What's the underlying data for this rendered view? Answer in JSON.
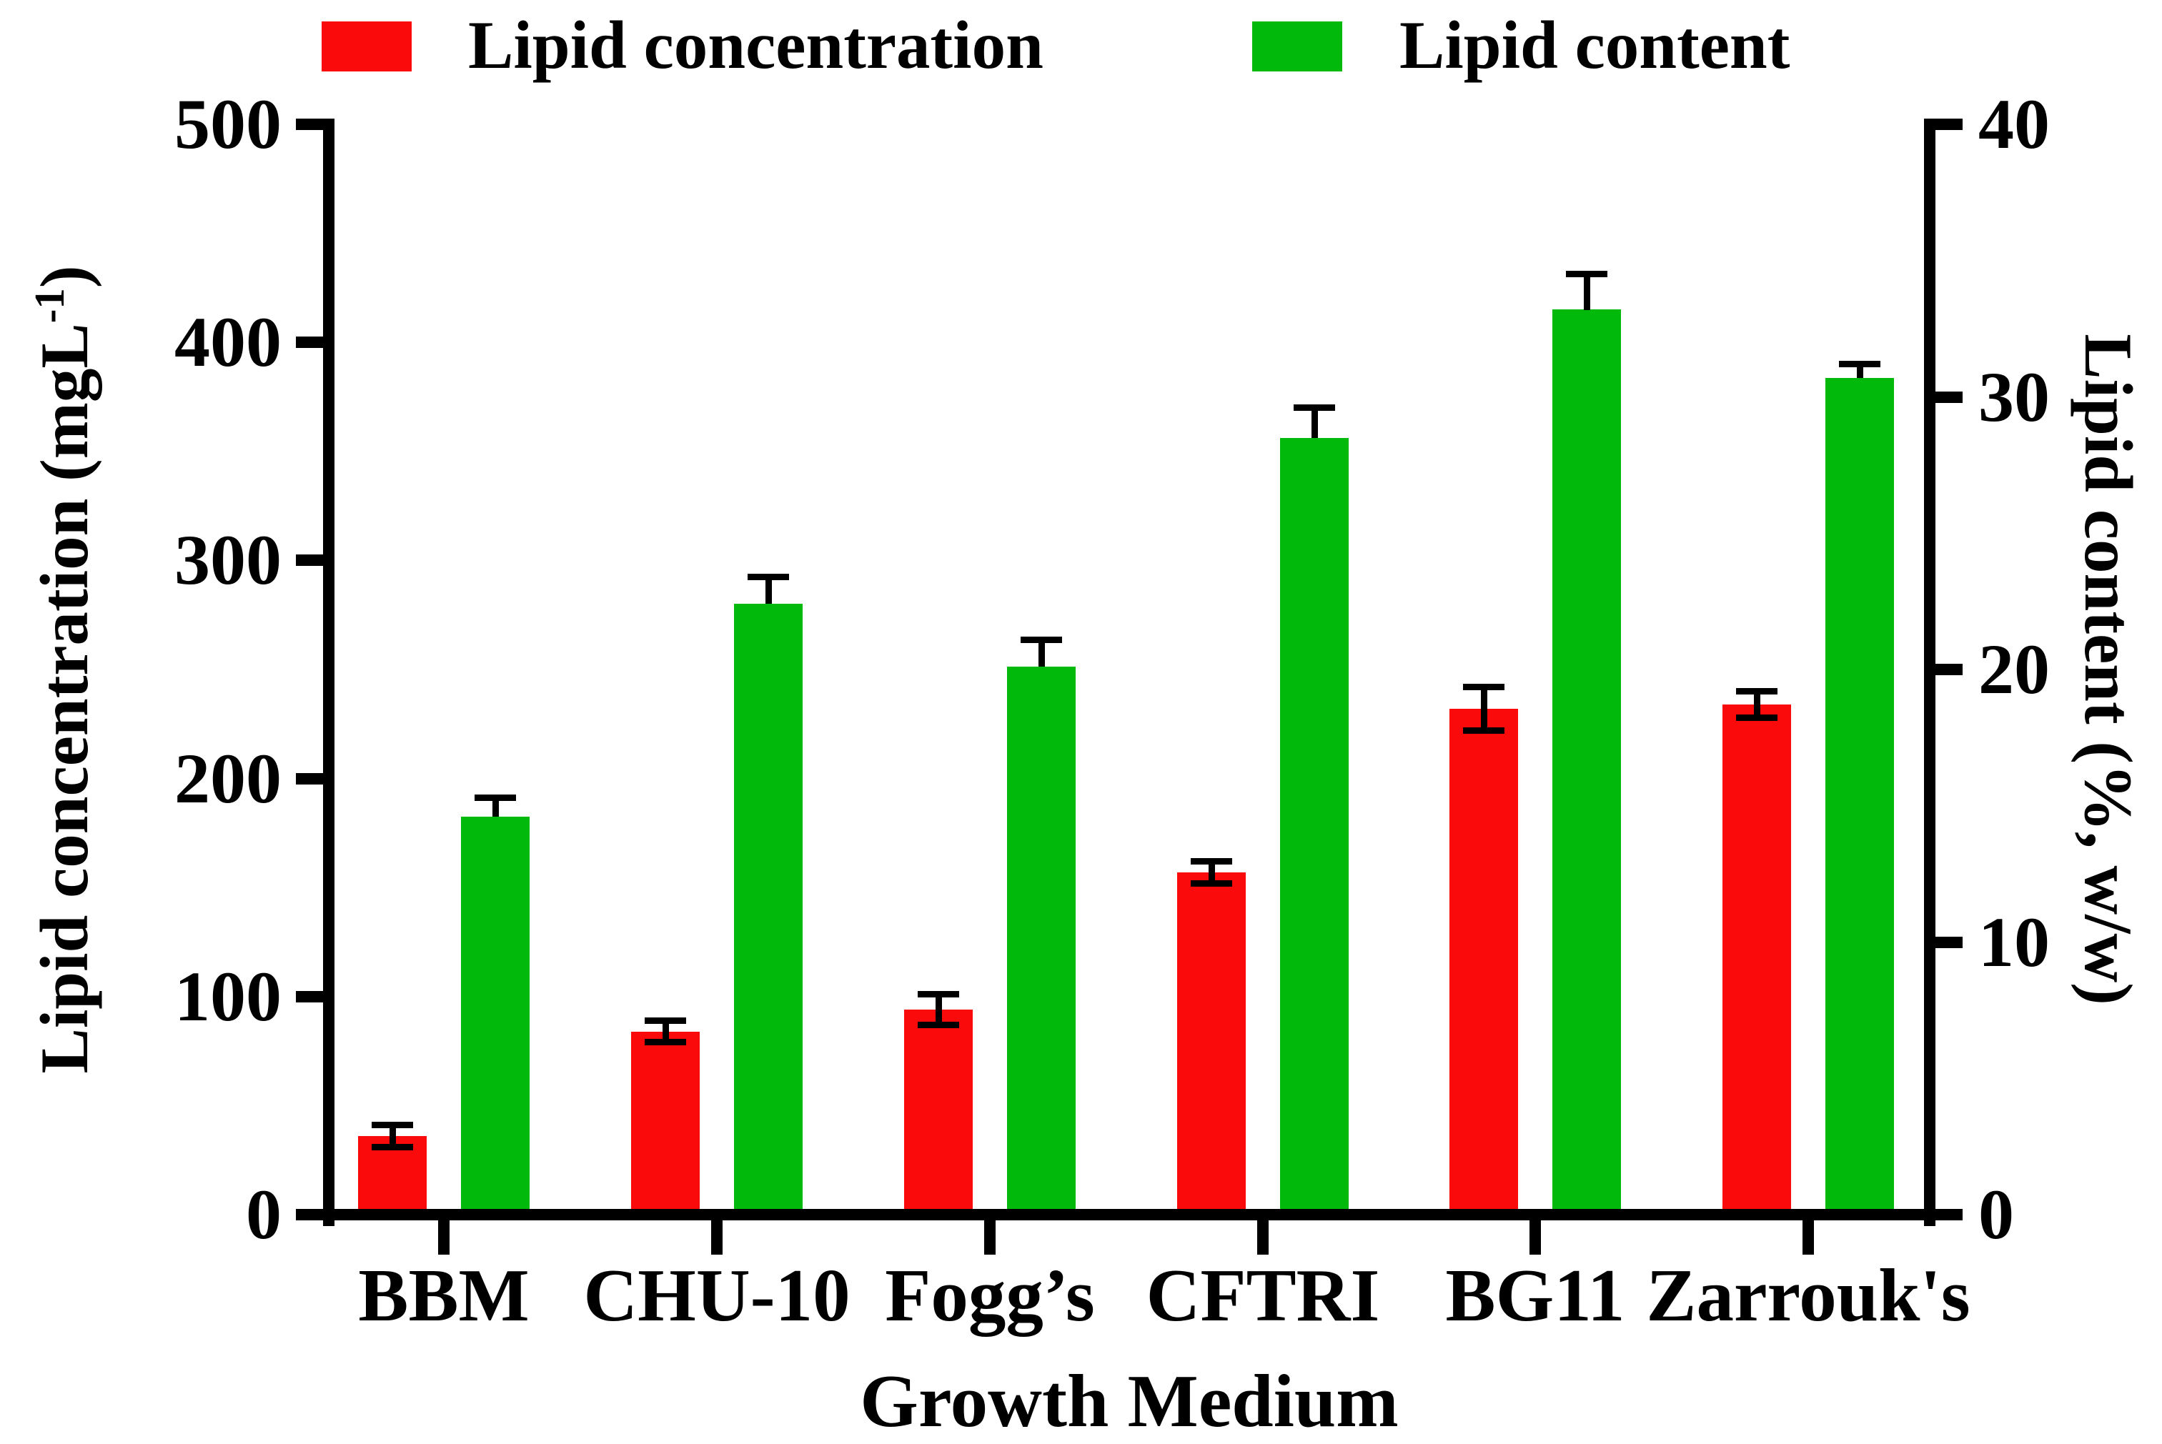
{
  "chart_data": {
    "type": "bar",
    "title": "",
    "xlabel": "Growth Medium",
    "categories": [
      "BBM",
      "CHU-10",
      "Fogg’s",
      "CFTRI",
      "BG11",
      "Zarrouk's"
    ],
    "series": [
      {
        "name": "Lipid concentration",
        "axis": "left",
        "color": "#fa0a0a",
        "values": [
          36,
          84,
          94,
          157,
          232,
          234
        ],
        "errors": [
          5,
          5,
          7,
          5,
          10,
          6
        ],
        "error_direction": "both"
      },
      {
        "name": "Lipid content",
        "axis": "right",
        "color": "#00b90a",
        "values": [
          14.6,
          22.4,
          20.1,
          28.5,
          33.2,
          30.7
        ],
        "errors": [
          0.7,
          1.0,
          1.0,
          1.1,
          1.3,
          0.5
        ],
        "error_direction": "upper"
      }
    ],
    "left_axis": {
      "label": "Lipid concentration (mgL-1)",
      "label_main": "Lipid concentration (mgL",
      "label_sup": "-1",
      "label_end": ")",
      "ticks": [
        0,
        100,
        200,
        300,
        400,
        500
      ],
      "range": [
        0,
        500
      ]
    },
    "right_axis": {
      "label": "Lipid content (%, w/w)",
      "ticks": [
        0,
        10,
        20,
        30,
        40
      ],
      "range": [
        0,
        40
      ]
    },
    "grid": false,
    "legend_position": "top",
    "bar_color_red": "#fa0a0a",
    "bar_color_green": "#00b90a",
    "axis_color": "#000000"
  }
}
